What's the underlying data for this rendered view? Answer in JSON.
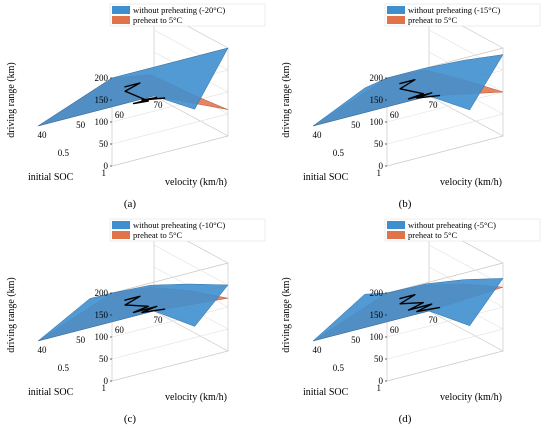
{
  "chart_data": [
    {
      "type": "surface3d",
      "panel_label": "(a)",
      "legend": [
        "without preheating (-20°C)",
        "preheat to 5°C"
      ],
      "series_colors": [
        "#3f8fcf",
        "#e0734a"
      ],
      "xlabel": "initial SOC",
      "ylabel": "velocity (km/h)",
      "zlabel": "driving range (km)",
      "xticks": [
        "1",
        "0.5"
      ],
      "yticks": [
        "40",
        "50",
        "60",
        "70"
      ],
      "zticks": [
        "200",
        "150",
        "100",
        "50",
        "0"
      ],
      "xlim": [
        0,
        1
      ],
      "ylim": [
        40,
        70
      ],
      "zlim": [
        0,
        200
      ],
      "blue_front_mid": 140,
      "series": [
        {
          "name": "without preheating (-20°C)",
          "values_at_soc1": [
            200,
            200,
            200,
            200
          ],
          "values_at_soc0": [
            0,
            0,
            0,
            0
          ]
        },
        {
          "name": "preheat to 5°C",
          "values_at_soc1": [
            200,
            185,
            120,
            60
          ],
          "values_at_soc0": [
            0,
            0,
            0,
            0
          ]
        }
      ]
    },
    {
      "type": "surface3d",
      "panel_label": "(b)",
      "legend": [
        "without preheating (-15°C)",
        "preheat to 5°C"
      ],
      "series_colors": [
        "#3f8fcf",
        "#e0734a"
      ],
      "xlabel": "initial SOC",
      "ylabel": "velocity (km/h)",
      "zlabel": "driving range (km)",
      "xticks": [
        "1",
        "0.5"
      ],
      "yticks": [
        "40",
        "50",
        "60",
        "70"
      ],
      "zticks": [
        "200",
        "150",
        "100",
        "50",
        "0"
      ],
      "xlim": [
        0,
        1
      ],
      "ylim": [
        40,
        70
      ],
      "zlim": [
        0,
        200
      ],
      "blue_front_mid": 150,
      "series": [
        {
          "name": "without preheating (-15°C)",
          "values_at_soc1": [
            200,
            200,
            195,
            185
          ],
          "values_at_soc0": [
            0,
            0,
            0,
            0
          ]
        },
        {
          "name": "preheat to 5°C",
          "values_at_soc1": [
            200,
            195,
            150,
            100
          ],
          "values_at_soc0": [
            0,
            0,
            0,
            0
          ]
        }
      ]
    },
    {
      "type": "surface3d",
      "panel_label": "(c)",
      "legend": [
        "without preheating (-10°C)",
        "preheat to 5°C"
      ],
      "series_colors": [
        "#3f8fcf",
        "#e0734a"
      ],
      "xlabel": "initial SOC",
      "ylabel": "velocity (km/h)",
      "zlabel": "driving range (km)",
      "xticks": [
        "1",
        "0.5"
      ],
      "yticks": [
        "40",
        "50",
        "60",
        "70"
      ],
      "zticks": [
        "200",
        "150",
        "100",
        "50",
        "0"
      ],
      "xlim": [
        0,
        1
      ],
      "ylim": [
        40,
        70
      ],
      "zlim": [
        0,
        200
      ],
      "blue_front_mid": 160,
      "series": [
        {
          "name": "without preheating (-10°C)",
          "values_at_soc1": [
            200,
            195,
            175,
            150
          ],
          "values_at_soc0": [
            0,
            0,
            0,
            0
          ]
        },
        {
          "name": "preheat to 5°C",
          "values_at_soc1": [
            200,
            190,
            160,
            120
          ],
          "values_at_soc0": [
            0,
            0,
            0,
            0
          ]
        }
      ]
    },
    {
      "type": "surface3d",
      "panel_label": "(d)",
      "legend": [
        "without preheating (-5°C)",
        "preheat to 5°C"
      ],
      "series_colors": [
        "#3f8fcf",
        "#e0734a"
      ],
      "xlabel": "initial SOC",
      "ylabel": "velocity (km/h)",
      "zlabel": "driving range (km)",
      "xticks": [
        "1",
        "0.5"
      ],
      "yticks": [
        "40",
        "50",
        "60",
        "70"
      ],
      "zticks": [
        "200",
        "150",
        "100",
        "50",
        "0"
      ],
      "xlim": [
        0,
        1
      ],
      "ylim": [
        40,
        70
      ],
      "zlim": [
        0,
        200
      ],
      "blue_front_mid": 170,
      "series": [
        {
          "name": "without preheating (-5°C)",
          "values_at_soc1": [
            200,
            198,
            185,
            165
          ],
          "values_at_soc0": [
            0,
            0,
            0,
            0
          ]
        },
        {
          "name": "preheat to 5°C",
          "values_at_soc1": [
            200,
            195,
            175,
            145
          ],
          "values_at_soc0": [
            0,
            0,
            0,
            0
          ]
        }
      ]
    }
  ]
}
